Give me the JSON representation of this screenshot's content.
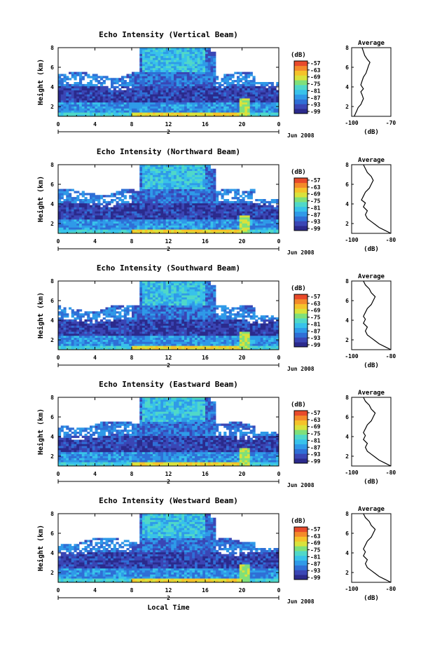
{
  "chart_data": [
    {
      "type": "heatmap",
      "title": "Echo Intensity (Vertical Beam)",
      "ylabel": "Height (km)",
      "x_ticks": [
        "0",
        "4",
        "8",
        "12",
        "16",
        "20",
        "0"
      ],
      "date_labels": [
        "2",
        "Jun 2008"
      ],
      "xlim": [
        0,
        24
      ],
      "ylim": [
        1,
        8
      ],
      "y_ticks": [
        "2",
        "4",
        "6",
        "8"
      ],
      "colorbar": {
        "unit": "(dB)",
        "ticks": [
          "-57",
          "-63",
          "-69",
          "-75",
          "-81",
          "-87",
          "-93",
          "-99"
        ]
      },
      "profile": {
        "title": "Average",
        "xlabel": "(dB)",
        "x_ticks": [
          "-100",
          "-70"
        ],
        "xlim": [
          -100,
          -70
        ],
        "points": [
          [
            -98,
            1.0
          ],
          [
            -97,
            1.3
          ],
          [
            -96,
            1.6
          ],
          [
            -95,
            1.9
          ],
          [
            -93,
            2.2
          ],
          [
            -92,
            2.5
          ],
          [
            -91,
            2.8
          ],
          [
            -92,
            3.2
          ],
          [
            -93,
            3.5
          ],
          [
            -91,
            3.8
          ],
          [
            -93,
            4.2
          ],
          [
            -92,
            4.6
          ],
          [
            -91,
            5.0
          ],
          [
            -89,
            5.4
          ],
          [
            -88,
            5.8
          ],
          [
            -87,
            6.2
          ],
          [
            -86,
            6.5
          ],
          [
            -88,
            6.8
          ],
          [
            -90,
            7.2
          ],
          [
            -91,
            7.6
          ],
          [
            -92,
            8.0
          ]
        ]
      }
    },
    {
      "type": "heatmap",
      "title": "Echo Intensity (Northward Beam)",
      "ylabel": "Height (km)",
      "x_ticks": [
        "0",
        "4",
        "8",
        "12",
        "16",
        "20",
        "0"
      ],
      "date_labels": [
        "2",
        "Jun 2008"
      ],
      "xlim": [
        0,
        24
      ],
      "ylim": [
        1,
        8
      ],
      "y_ticks": [
        "2",
        "4",
        "6",
        "8"
      ],
      "colorbar": {
        "unit": "(dB)",
        "ticks": [
          "-57",
          "-63",
          "-69",
          "-75",
          "-81",
          "-87",
          "-93",
          "-99"
        ]
      },
      "profile": {
        "title": "Average",
        "xlabel": "(dB)",
        "x_ticks": [
          "-100",
          "-80"
        ],
        "xlim": [
          -100,
          -80
        ],
        "points": [
          [
            -80,
            1.0
          ],
          [
            -83,
            1.3
          ],
          [
            -86,
            1.6
          ],
          [
            -88,
            1.9
          ],
          [
            -90,
            2.2
          ],
          [
            -92,
            2.5
          ],
          [
            -93,
            2.9
          ],
          [
            -92,
            3.3
          ],
          [
            -94,
            3.7
          ],
          [
            -93,
            4.1
          ],
          [
            -95,
            4.4
          ],
          [
            -94,
            4.8
          ],
          [
            -93,
            5.2
          ],
          [
            -91,
            5.6
          ],
          [
            -90,
            6.0
          ],
          [
            -89,
            6.4
          ],
          [
            -90,
            6.8
          ],
          [
            -92,
            7.2
          ],
          [
            -93,
            7.6
          ],
          [
            -94,
            8.0
          ]
        ]
      }
    },
    {
      "type": "heatmap",
      "title": "Echo Intensity (Southward Beam)",
      "ylabel": "Height (km)",
      "x_ticks": [
        "0",
        "4",
        "8",
        "12",
        "16",
        "20",
        "0"
      ],
      "date_labels": [
        "2",
        "Jun 2008"
      ],
      "xlim": [
        0,
        24
      ],
      "ylim": [
        1,
        8
      ],
      "y_ticks": [
        "2",
        "4",
        "6",
        "8"
      ],
      "colorbar": {
        "unit": "(dB)",
        "ticks": [
          "-57",
          "-63",
          "-69",
          "-75",
          "-81",
          "-87",
          "-93",
          "-99"
        ]
      },
      "profile": {
        "title": "Average",
        "xlabel": "(dB)",
        "x_ticks": [
          "-100",
          "-80"
        ],
        "xlim": [
          -100,
          -80
        ],
        "points": [
          [
            -80,
            1.0
          ],
          [
            -83,
            1.3
          ],
          [
            -86,
            1.6
          ],
          [
            -88,
            1.9
          ],
          [
            -90,
            2.2
          ],
          [
            -92,
            2.5
          ],
          [
            -93,
            2.9
          ],
          [
            -92,
            3.3
          ],
          [
            -94,
            3.7
          ],
          [
            -93,
            4.1
          ],
          [
            -94,
            4.4
          ],
          [
            -93,
            4.8
          ],
          [
            -92,
            5.2
          ],
          [
            -90,
            5.6
          ],
          [
            -89,
            6.0
          ],
          [
            -88,
            6.4
          ],
          [
            -90,
            6.8
          ],
          [
            -91,
            7.2
          ],
          [
            -93,
            7.6
          ],
          [
            -94,
            8.0
          ]
        ]
      }
    },
    {
      "type": "heatmap",
      "title": "Echo Intensity (Eastward Beam)",
      "ylabel": "Height (km)",
      "x_ticks": [
        "0",
        "4",
        "8",
        "12",
        "16",
        "20",
        "0"
      ],
      "date_labels": [
        "2",
        "Jun 2008"
      ],
      "xlim": [
        0,
        24
      ],
      "ylim": [
        1,
        8
      ],
      "y_ticks": [
        "2",
        "4",
        "6",
        "8"
      ],
      "colorbar": {
        "unit": "(dB)",
        "ticks": [
          "-57",
          "-63",
          "-69",
          "-75",
          "-81",
          "-87",
          "-93",
          "-99"
        ]
      },
      "profile": {
        "title": "Average",
        "xlabel": "(dB)",
        "x_ticks": [
          "-100",
          "-80"
        ],
        "xlim": [
          -100,
          -80
        ],
        "points": [
          [
            -80,
            1.0
          ],
          [
            -83,
            1.3
          ],
          [
            -86,
            1.6
          ],
          [
            -88,
            1.9
          ],
          [
            -90,
            2.2
          ],
          [
            -92,
            2.5
          ],
          [
            -93,
            2.9
          ],
          [
            -92,
            3.3
          ],
          [
            -94,
            3.7
          ],
          [
            -93,
            4.1
          ],
          [
            -94,
            4.4
          ],
          [
            -93,
            4.8
          ],
          [
            -92,
            5.2
          ],
          [
            -90,
            5.6
          ],
          [
            -89,
            6.0
          ],
          [
            -88,
            6.4
          ],
          [
            -90,
            6.8
          ],
          [
            -91,
            7.2
          ],
          [
            -93,
            7.6
          ],
          [
            -94,
            8.0
          ]
        ]
      }
    },
    {
      "type": "heatmap",
      "title": "Echo Intensity (Westward Beam)",
      "ylabel": "Height (km)",
      "xlabel": "Local Time",
      "x_ticks": [
        "0",
        "4",
        "8",
        "12",
        "16",
        "20",
        "0"
      ],
      "date_labels": [
        "2",
        "Jun 2008"
      ],
      "xlim": [
        0,
        24
      ],
      "ylim": [
        1,
        8
      ],
      "y_ticks": [
        "2",
        "4",
        "6",
        "8"
      ],
      "colorbar": {
        "unit": "(dB)",
        "ticks": [
          "-57",
          "-63",
          "-69",
          "-75",
          "-81",
          "-87",
          "-93",
          "-99"
        ]
      },
      "profile": {
        "title": "Average",
        "xlabel": "(dB)",
        "x_ticks": [
          "-100",
          "-80"
        ],
        "xlim": [
          -100,
          -80
        ],
        "points": [
          [
            -80,
            1.0
          ],
          [
            -83,
            1.3
          ],
          [
            -86,
            1.6
          ],
          [
            -88,
            1.9
          ],
          [
            -90,
            2.2
          ],
          [
            -92,
            2.5
          ],
          [
            -93,
            2.9
          ],
          [
            -92,
            3.3
          ],
          [
            -94,
            3.7
          ],
          [
            -93,
            4.1
          ],
          [
            -94,
            4.4
          ],
          [
            -93,
            4.8
          ],
          [
            -92,
            5.2
          ],
          [
            -90,
            5.6
          ],
          [
            -89,
            6.0
          ],
          [
            -88,
            6.4
          ],
          [
            -90,
            6.8
          ],
          [
            -91,
            7.2
          ],
          [
            -93,
            7.6
          ],
          [
            -94,
            8.0
          ]
        ]
      }
    }
  ],
  "palette": [
    "#2b2a8c",
    "#3a46b5",
    "#2f6fd6",
    "#2f9ae8",
    "#38c2ea",
    "#50d8c8",
    "#7fe07a",
    "#d9e23c",
    "#f5c22a",
    "#f48a2a",
    "#e84a2a"
  ]
}
